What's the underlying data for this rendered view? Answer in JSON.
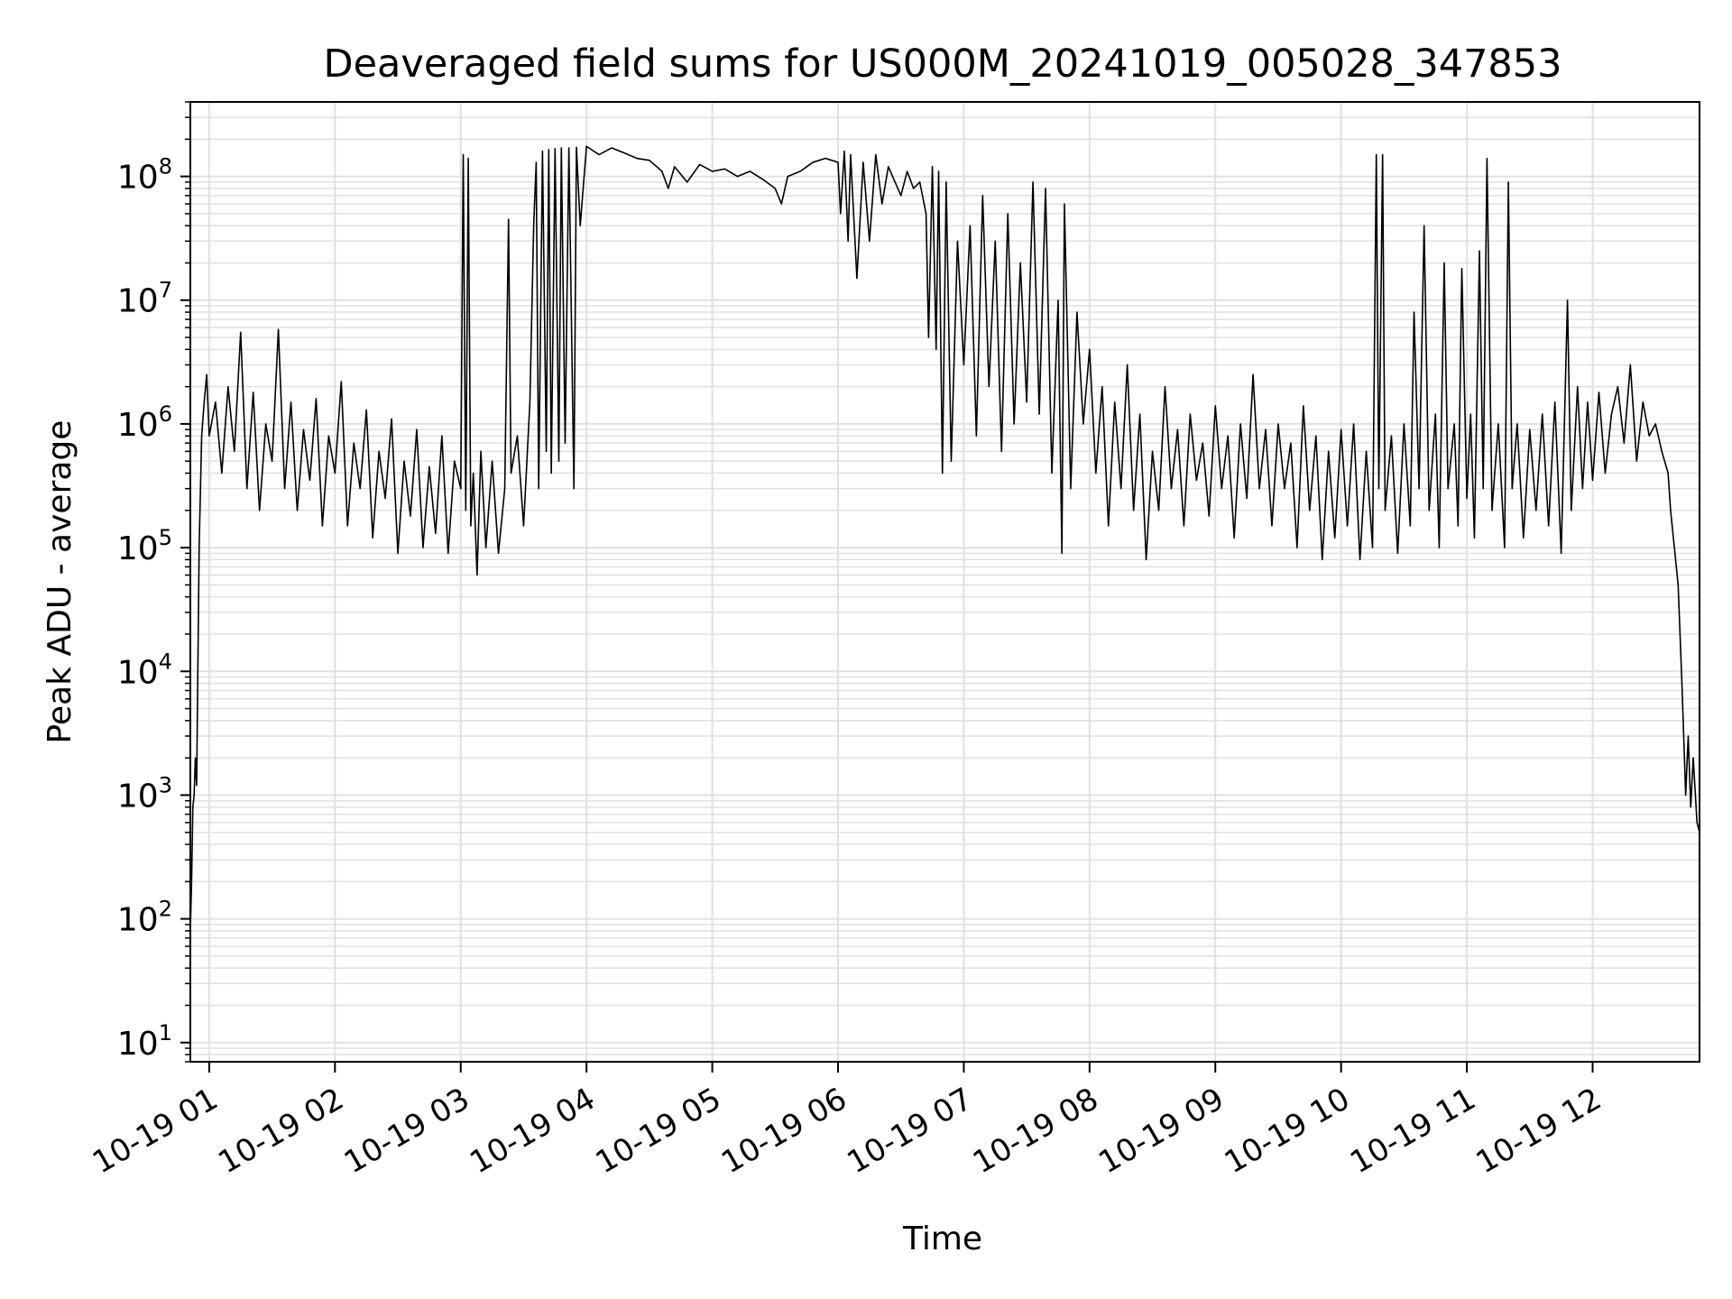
{
  "chart_data": {
    "type": "line",
    "title": "Deaveraged field sums for US000M_20241019_005028_347853",
    "xlabel": "Time",
    "ylabel": "Peak ADU - average",
    "yscale": "log",
    "ylim": [
      7,
      400000000
    ],
    "xlim_hours": [
      0.85,
      12.85
    ],
    "grid": true,
    "line_color": "#000000",
    "grid_color": "#e0e0e0",
    "x_ticks": [
      {
        "label": "10-19 01",
        "hour": 1
      },
      {
        "label": "10-19 02",
        "hour": 2
      },
      {
        "label": "10-19 03",
        "hour": 3
      },
      {
        "label": "10-19 04",
        "hour": 4
      },
      {
        "label": "10-19 05",
        "hour": 5
      },
      {
        "label": "10-19 06",
        "hour": 6
      },
      {
        "label": "10-19 07",
        "hour": 7
      },
      {
        "label": "10-19 08",
        "hour": 8
      },
      {
        "label": "10-19 09",
        "hour": 9
      },
      {
        "label": "10-19 10",
        "hour": 10
      },
      {
        "label": "10-19 11",
        "hour": 11
      },
      {
        "label": "10-19 12",
        "hour": 12
      }
    ],
    "y_ticks": [
      {
        "base": "10",
        "exp": "1",
        "value": 10
      },
      {
        "base": "10",
        "exp": "2",
        "value": 100
      },
      {
        "base": "10",
        "exp": "3",
        "value": 1000
      },
      {
        "base": "10",
        "exp": "4",
        "value": 10000
      },
      {
        "base": "10",
        "exp": "5",
        "value": 100000
      },
      {
        "base": "10",
        "exp": "6",
        "value": 1000000
      },
      {
        "base": "10",
        "exp": "7",
        "value": 10000000
      },
      {
        "base": "10",
        "exp": "8",
        "value": 100000000
      }
    ],
    "series": [
      {
        "points": [
          [
            0.85,
            80
          ],
          [
            0.86,
            200
          ],
          [
            0.87,
            800
          ],
          [
            0.88,
            1000
          ],
          [
            0.89,
            2000
          ],
          [
            0.9,
            1200
          ],
          [
            0.92,
            100000
          ],
          [
            0.94,
            800000
          ],
          [
            0.96,
            1500000
          ],
          [
            0.98,
            2500000
          ],
          [
            1.0,
            800000
          ],
          [
            1.05,
            1500000
          ],
          [
            1.1,
            400000
          ],
          [
            1.15,
            2000000
          ],
          [
            1.2,
            600000
          ],
          [
            1.25,
            5500000
          ],
          [
            1.3,
            300000
          ],
          [
            1.35,
            1800000
          ],
          [
            1.4,
            200000
          ],
          [
            1.45,
            1000000
          ],
          [
            1.5,
            500000
          ],
          [
            1.55,
            5800000
          ],
          [
            1.6,
            300000
          ],
          [
            1.65,
            1500000
          ],
          [
            1.7,
            200000
          ],
          [
            1.75,
            900000
          ],
          [
            1.8,
            350000
          ],
          [
            1.85,
            1600000
          ],
          [
            1.9,
            150000
          ],
          [
            1.95,
            800000
          ],
          [
            2.0,
            400000
          ],
          [
            2.05,
            2200000
          ],
          [
            2.1,
            150000
          ],
          [
            2.15,
            700000
          ],
          [
            2.2,
            300000
          ],
          [
            2.25,
            1300000
          ],
          [
            2.3,
            120000
          ],
          [
            2.35,
            600000
          ],
          [
            2.4,
            250000
          ],
          [
            2.45,
            1100000
          ],
          [
            2.5,
            90000
          ],
          [
            2.55,
            500000
          ],
          [
            2.6,
            180000
          ],
          [
            2.65,
            900000
          ],
          [
            2.7,
            100000
          ],
          [
            2.75,
            450000
          ],
          [
            2.8,
            130000
          ],
          [
            2.85,
            800000
          ],
          [
            2.9,
            90000
          ],
          [
            2.95,
            500000
          ],
          [
            3.0,
            300000
          ],
          [
            3.02,
            150000000
          ],
          [
            3.04,
            200000
          ],
          [
            3.06,
            140000000
          ],
          [
            3.08,
            150000
          ],
          [
            3.1,
            400000
          ],
          [
            3.13,
            60000
          ],
          [
            3.16,
            600000
          ],
          [
            3.2,
            100000
          ],
          [
            3.25,
            500000
          ],
          [
            3.3,
            90000
          ],
          [
            3.35,
            300000
          ],
          [
            3.38,
            45000000
          ],
          [
            3.4,
            400000
          ],
          [
            3.45,
            800000
          ],
          [
            3.5,
            150000
          ],
          [
            3.55,
            1500000
          ],
          [
            3.58,
            40000000
          ],
          [
            3.6,
            130000000
          ],
          [
            3.62,
            300000
          ],
          [
            3.65,
            160000000
          ],
          [
            3.68,
            600000
          ],
          [
            3.7,
            165000000
          ],
          [
            3.72,
            400000
          ],
          [
            3.75,
            168000000
          ],
          [
            3.78,
            500000
          ],
          [
            3.8,
            170000000
          ],
          [
            3.83,
            700000
          ],
          [
            3.86,
            170000000
          ],
          [
            3.9,
            300000
          ],
          [
            3.92,
            172000000
          ],
          [
            3.95,
            40000000
          ],
          [
            4.0,
            175000000
          ],
          [
            4.1,
            150000000
          ],
          [
            4.2,
            170000000
          ],
          [
            4.3,
            155000000
          ],
          [
            4.4,
            140000000
          ],
          [
            4.5,
            135000000
          ],
          [
            4.6,
            110000000
          ],
          [
            4.65,
            80000000
          ],
          [
            4.7,
            120000000
          ],
          [
            4.8,
            90000000
          ],
          [
            4.9,
            125000000
          ],
          [
            5.0,
            110000000
          ],
          [
            5.1,
            115000000
          ],
          [
            5.2,
            100000000
          ],
          [
            5.3,
            110000000
          ],
          [
            5.4,
            95000000
          ],
          [
            5.5,
            80000000
          ],
          [
            5.55,
            60000000
          ],
          [
            5.6,
            100000000
          ],
          [
            5.7,
            110000000
          ],
          [
            5.8,
            130000000
          ],
          [
            5.9,
            140000000
          ],
          [
            6.0,
            130000000
          ],
          [
            6.02,
            50000000
          ],
          [
            6.05,
            160000000
          ],
          [
            6.08,
            30000000
          ],
          [
            6.1,
            150000000
          ],
          [
            6.15,
            15000000
          ],
          [
            6.2,
            130000000
          ],
          [
            6.25,
            30000000
          ],
          [
            6.3,
            150000000
          ],
          [
            6.35,
            60000000
          ],
          [
            6.4,
            120000000
          ],
          [
            6.5,
            70000000
          ],
          [
            6.55,
            110000000
          ],
          [
            6.6,
            80000000
          ],
          [
            6.65,
            90000000
          ],
          [
            6.7,
            50000000
          ],
          [
            6.72,
            5000000
          ],
          [
            6.75,
            120000000
          ],
          [
            6.78,
            4000000
          ],
          [
            6.8,
            110000000
          ],
          [
            6.83,
            400000
          ],
          [
            6.86,
            90000000
          ],
          [
            6.9,
            500000
          ],
          [
            6.95,
            30000000
          ],
          [
            7.0,
            3000000
          ],
          [
            7.05,
            40000000
          ],
          [
            7.1,
            800000
          ],
          [
            7.15,
            70000000
          ],
          [
            7.2,
            2000000
          ],
          [
            7.25,
            30000000
          ],
          [
            7.3,
            600000
          ],
          [
            7.35,
            50000000
          ],
          [
            7.4,
            1000000
          ],
          [
            7.45,
            20000000
          ],
          [
            7.5,
            1500000
          ],
          [
            7.55,
            90000000
          ],
          [
            7.6,
            1200000
          ],
          [
            7.65,
            80000000
          ],
          [
            7.7,
            400000
          ],
          [
            7.75,
            10000000
          ],
          [
            7.78,
            90000
          ],
          [
            7.8,
            60000000
          ],
          [
            7.85,
            300000
          ],
          [
            7.9,
            8000000
          ],
          [
            7.95,
            1000000
          ],
          [
            8.0,
            4000000
          ],
          [
            8.05,
            400000
          ],
          [
            8.1,
            2000000
          ],
          [
            8.15,
            150000
          ],
          [
            8.2,
            1500000
          ],
          [
            8.25,
            300000
          ],
          [
            8.3,
            3000000
          ],
          [
            8.35,
            200000
          ],
          [
            8.4,
            1200000
          ],
          [
            8.45,
            80000
          ],
          [
            8.5,
            600000
          ],
          [
            8.55,
            200000
          ],
          [
            8.6,
            2000000
          ],
          [
            8.65,
            300000
          ],
          [
            8.7,
            900000
          ],
          [
            8.75,
            150000
          ],
          [
            8.8,
            1200000
          ],
          [
            8.85,
            350000
          ],
          [
            8.9,
            700000
          ],
          [
            8.95,
            180000
          ],
          [
            9.0,
            1400000
          ],
          [
            9.05,
            300000
          ],
          [
            9.1,
            800000
          ],
          [
            9.15,
            120000
          ],
          [
            9.2,
            1000000
          ],
          [
            9.25,
            250000
          ],
          [
            9.3,
            2500000
          ],
          [
            9.35,
            300000
          ],
          [
            9.4,
            900000
          ],
          [
            9.45,
            150000
          ],
          [
            9.5,
            1000000
          ],
          [
            9.55,
            300000
          ],
          [
            9.6,
            700000
          ],
          [
            9.65,
            100000
          ],
          [
            9.7,
            1400000
          ],
          [
            9.75,
            200000
          ],
          [
            9.8,
            800000
          ],
          [
            9.85,
            80000
          ],
          [
            9.9,
            600000
          ],
          [
            9.95,
            120000
          ],
          [
            10.0,
            900000
          ],
          [
            10.05,
            150000
          ],
          [
            10.1,
            1000000
          ],
          [
            10.15,
            80000
          ],
          [
            10.2,
            600000
          ],
          [
            10.25,
            100000
          ],
          [
            10.28,
            150000000
          ],
          [
            10.3,
            300000
          ],
          [
            10.33,
            150000000
          ],
          [
            10.35,
            200000
          ],
          [
            10.4,
            800000
          ],
          [
            10.45,
            90000
          ],
          [
            10.5,
            1000000
          ],
          [
            10.55,
            150000
          ],
          [
            10.58,
            8000000
          ],
          [
            10.62,
            300000
          ],
          [
            10.66,
            40000000
          ],
          [
            10.7,
            200000
          ],
          [
            10.75,
            1200000
          ],
          [
            10.78,
            100000
          ],
          [
            10.82,
            20000000
          ],
          [
            10.85,
            300000
          ],
          [
            10.9,
            1000000
          ],
          [
            10.93,
            150000
          ],
          [
            10.96,
            18000000
          ],
          [
            11.0,
            250000
          ],
          [
            11.03,
            1200000
          ],
          [
            11.06,
            120000
          ],
          [
            11.1,
            25000000
          ],
          [
            11.13,
            300000
          ],
          [
            11.16,
            140000000
          ],
          [
            11.2,
            200000
          ],
          [
            11.25,
            1000000
          ],
          [
            11.3,
            100000
          ],
          [
            11.33,
            90000000
          ],
          [
            11.36,
            300000
          ],
          [
            11.4,
            1000000
          ],
          [
            11.45,
            120000
          ],
          [
            11.5,
            900000
          ],
          [
            11.55,
            200000
          ],
          [
            11.6,
            1200000
          ],
          [
            11.65,
            150000
          ],
          [
            11.7,
            1500000
          ],
          [
            11.75,
            90000
          ],
          [
            11.8,
            10000000
          ],
          [
            11.83,
            200000
          ],
          [
            11.88,
            2000000
          ],
          [
            11.92,
            300000
          ],
          [
            11.96,
            1500000
          ],
          [
            12.0,
            350000
          ],
          [
            12.05,
            1800000
          ],
          [
            12.1,
            400000
          ],
          [
            12.15,
            1200000
          ],
          [
            12.2,
            2000000
          ],
          [
            12.25,
            700000
          ],
          [
            12.3,
            3000000
          ],
          [
            12.35,
            500000
          ],
          [
            12.4,
            1500000
          ],
          [
            12.45,
            800000
          ],
          [
            12.5,
            1000000
          ],
          [
            12.55,
            600000
          ],
          [
            12.6,
            400000
          ],
          [
            12.62,
            200000
          ],
          [
            12.65,
            100000
          ],
          [
            12.68,
            50000
          ],
          [
            12.71,
            8000
          ],
          [
            12.74,
            1000
          ],
          [
            12.76,
            3000
          ],
          [
            12.78,
            800
          ],
          [
            12.8,
            2000
          ],
          [
            12.83,
            600
          ],
          [
            12.85,
            500
          ]
        ]
      }
    ]
  }
}
